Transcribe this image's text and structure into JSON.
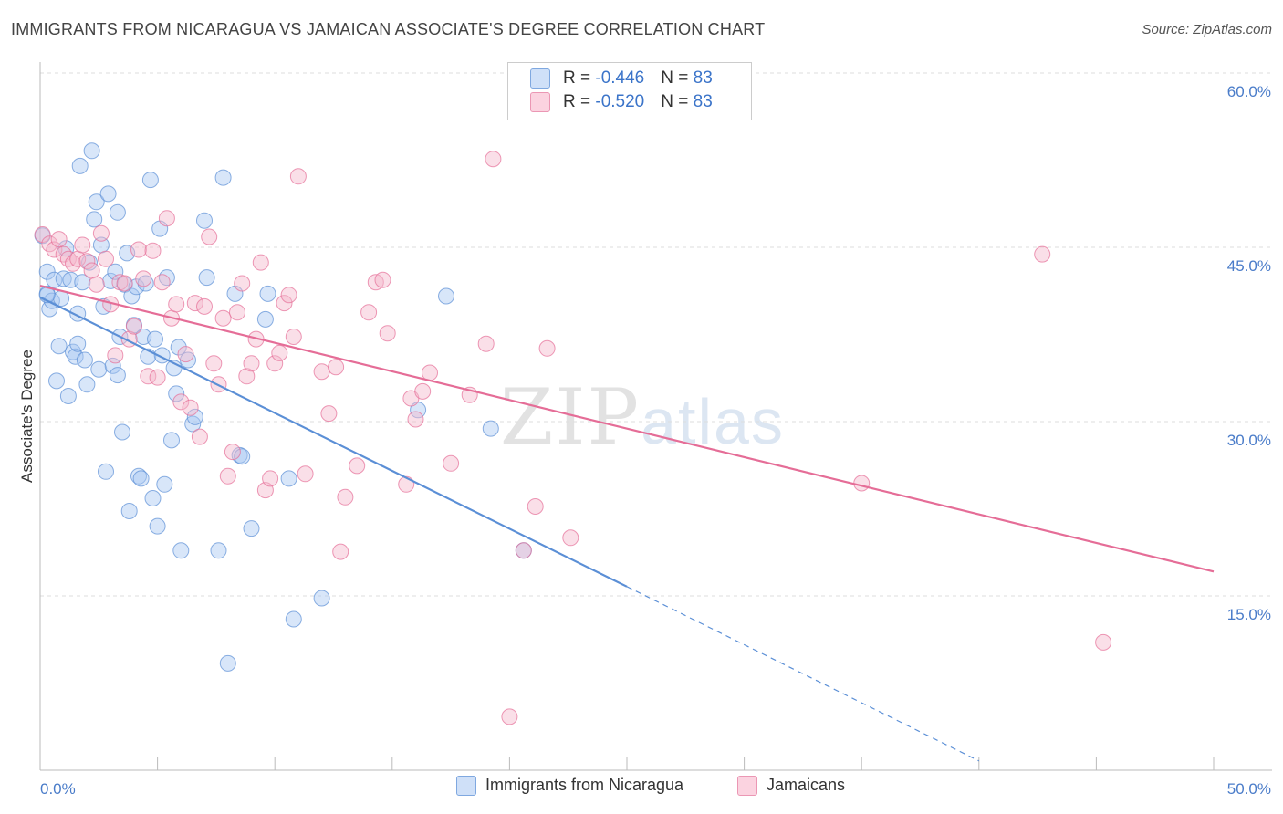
{
  "title": "IMMIGRANTS FROM NICARAGUA VS JAMAICAN ASSOCIATE'S DEGREE CORRELATION CHART",
  "source": "Source: ZipAtlas.com",
  "watermark": {
    "zip": "ZIP",
    "atlas": "atlas"
  },
  "legend": {
    "rows": [
      {
        "r_label": "R = ",
        "r_value": "-0.446",
        "n_label": "N = ",
        "n_value": "83",
        "color": "#a9c8f2"
      },
      {
        "r_label": "R = ",
        "r_value": "-0.520",
        "n_label": "N = ",
        "n_value": "83",
        "color": "#f5b8cc"
      }
    ]
  },
  "bottom_legend": {
    "items": [
      {
        "label": "Immigrants from Nicaragua",
        "color": "#a9c8f2"
      },
      {
        "label": "Jamaicans",
        "color": "#f5b8cc"
      }
    ]
  },
  "chart_data": {
    "type": "scatter",
    "title": "IMMIGRANTS FROM NICARAGUA VS JAMAICAN ASSOCIATE'S DEGREE CORRELATION CHART",
    "xlabel": "",
    "ylabel": "Associate's Degree",
    "xlim": [
      0,
      50
    ],
    "ylim": [
      0,
      60
    ],
    "x_tick_labels": [
      "0.0%",
      "50.0%"
    ],
    "y_ticks": [
      15,
      30,
      45,
      60
    ],
    "y_tick_labels": [
      "15.0%",
      "30.0%",
      "45.0%",
      "60.0%"
    ],
    "grid": true,
    "legend_position": "top-center",
    "series": [
      {
        "name": "Immigrants from Nicaragua",
        "color": "#5b8fd6",
        "fill": "#a9c8f2",
        "trend": {
          "x": [
            0,
            25
          ],
          "y": [
            40.7,
            15.8
          ],
          "dashed_to": [
            40,
            0.8
          ]
        },
        "points": [
          [
            0.1,
            46.0
          ],
          [
            0.3,
            42.9
          ],
          [
            0.3,
            41.0
          ],
          [
            0.4,
            39.7
          ],
          [
            0.5,
            40.4
          ],
          [
            0.6,
            42.2
          ],
          [
            0.7,
            33.5
          ],
          [
            0.8,
            36.5
          ],
          [
            0.9,
            40.6
          ],
          [
            1.0,
            42.3
          ],
          [
            1.1,
            44.9
          ],
          [
            1.2,
            32.2
          ],
          [
            1.3,
            42.2
          ],
          [
            1.4,
            36.0
          ],
          [
            1.5,
            35.6
          ],
          [
            1.6,
            36.7
          ],
          [
            1.6,
            39.3
          ],
          [
            1.7,
            52.0
          ],
          [
            1.8,
            42.0
          ],
          [
            1.9,
            35.3
          ],
          [
            2.0,
            33.2
          ],
          [
            2.1,
            43.7
          ],
          [
            2.2,
            53.3
          ],
          [
            2.3,
            47.4
          ],
          [
            2.4,
            48.9
          ],
          [
            2.5,
            34.5
          ],
          [
            2.6,
            45.2
          ],
          [
            2.7,
            39.9
          ],
          [
            2.8,
            25.7
          ],
          [
            2.9,
            49.6
          ],
          [
            3.0,
            42.1
          ],
          [
            3.1,
            34.8
          ],
          [
            3.2,
            42.9
          ],
          [
            3.3,
            34.0
          ],
          [
            3.4,
            37.3
          ],
          [
            3.5,
            29.1
          ],
          [
            3.6,
            41.8
          ],
          [
            3.7,
            44.5
          ],
          [
            3.8,
            22.3
          ],
          [
            3.9,
            40.8
          ],
          [
            4.0,
            38.3
          ],
          [
            4.1,
            41.6
          ],
          [
            4.2,
            25.3
          ],
          [
            4.3,
            25.1
          ],
          [
            4.4,
            37.3
          ],
          [
            4.5,
            41.9
          ],
          [
            4.6,
            35.6
          ],
          [
            4.7,
            50.8
          ],
          [
            4.8,
            23.4
          ],
          [
            4.9,
            37.1
          ],
          [
            5.0,
            21.0
          ],
          [
            5.1,
            46.6
          ],
          [
            5.2,
            35.7
          ],
          [
            5.3,
            24.6
          ],
          [
            5.4,
            42.4
          ],
          [
            5.6,
            28.4
          ],
          [
            5.7,
            34.6
          ],
          [
            5.8,
            32.4
          ],
          [
            5.9,
            36.4
          ],
          [
            6.0,
            18.9
          ],
          [
            6.3,
            35.3
          ],
          [
            6.5,
            29.8
          ],
          [
            6.6,
            30.4
          ],
          [
            7.0,
            47.3
          ],
          [
            7.1,
            42.4
          ],
          [
            7.6,
            18.9
          ],
          [
            8.0,
            9.2
          ],
          [
            8.3,
            41.0
          ],
          [
            8.5,
            27.1
          ],
          [
            8.6,
            27.0
          ],
          [
            9.0,
            20.8
          ],
          [
            9.6,
            38.8
          ],
          [
            9.7,
            41.0
          ],
          [
            10.6,
            25.1
          ],
          [
            10.8,
            13.0
          ],
          [
            12.0,
            14.8
          ],
          [
            16.1,
            31.0
          ],
          [
            17.3,
            40.8
          ],
          [
            19.2,
            29.4
          ],
          [
            20.6,
            18.9
          ],
          [
            0.3,
            40.9
          ],
          [
            7.8,
            51.0
          ],
          [
            3.3,
            48.0
          ]
        ]
      },
      {
        "name": "Jamaicans",
        "color": "#e56d97",
        "fill": "#f5b8cc",
        "trend": {
          "x": [
            0,
            50
          ],
          "y": [
            41.7,
            17.1
          ]
        },
        "points": [
          [
            0.1,
            46.1
          ],
          [
            0.4,
            45.3
          ],
          [
            0.6,
            44.8
          ],
          [
            0.8,
            45.7
          ],
          [
            1.0,
            44.4
          ],
          [
            1.2,
            44.0
          ],
          [
            1.4,
            43.6
          ],
          [
            1.6,
            44.0
          ],
          [
            1.8,
            45.2
          ],
          [
            2.0,
            43.8
          ],
          [
            2.2,
            43.0
          ],
          [
            2.4,
            41.8
          ],
          [
            2.6,
            46.2
          ],
          [
            2.8,
            44.0
          ],
          [
            3.0,
            40.1
          ],
          [
            3.2,
            35.7
          ],
          [
            3.4,
            42.0
          ],
          [
            3.6,
            41.9
          ],
          [
            3.8,
            37.1
          ],
          [
            4.0,
            38.2
          ],
          [
            4.2,
            44.8
          ],
          [
            4.4,
            42.3
          ],
          [
            4.6,
            33.9
          ],
          [
            4.8,
            44.7
          ],
          [
            5.0,
            33.8
          ],
          [
            5.2,
            42.0
          ],
          [
            5.4,
            47.5
          ],
          [
            5.6,
            38.9
          ],
          [
            5.8,
            40.1
          ],
          [
            6.0,
            31.7
          ],
          [
            6.2,
            35.8
          ],
          [
            6.4,
            31.2
          ],
          [
            6.6,
            40.2
          ],
          [
            6.8,
            28.7
          ],
          [
            7.0,
            39.9
          ],
          [
            7.2,
            45.9
          ],
          [
            7.4,
            35.0
          ],
          [
            7.6,
            33.2
          ],
          [
            7.8,
            38.9
          ],
          [
            8.0,
            25.3
          ],
          [
            8.2,
            27.4
          ],
          [
            8.4,
            39.4
          ],
          [
            8.6,
            41.9
          ],
          [
            8.8,
            33.9
          ],
          [
            9.0,
            35.0
          ],
          [
            9.2,
            37.1
          ],
          [
            9.4,
            43.7
          ],
          [
            9.6,
            24.1
          ],
          [
            9.8,
            25.1
          ],
          [
            10.0,
            35.0
          ],
          [
            10.2,
            35.9
          ],
          [
            10.4,
            40.2
          ],
          [
            10.6,
            40.9
          ],
          [
            10.8,
            37.3
          ],
          [
            11.0,
            51.1
          ],
          [
            11.3,
            25.5
          ],
          [
            12.0,
            34.3
          ],
          [
            12.3,
            30.7
          ],
          [
            12.6,
            34.7
          ],
          [
            12.8,
            18.8
          ],
          [
            13.0,
            23.5
          ],
          [
            13.5,
            26.2
          ],
          [
            14.0,
            39.4
          ],
          [
            14.3,
            42.0
          ],
          [
            14.6,
            42.2
          ],
          [
            14.8,
            37.6
          ],
          [
            15.6,
            24.6
          ],
          [
            15.8,
            32.0
          ],
          [
            16.0,
            30.2
          ],
          [
            16.3,
            32.6
          ],
          [
            16.6,
            34.2
          ],
          [
            17.5,
            26.4
          ],
          [
            18.3,
            32.3
          ],
          [
            19.0,
            36.7
          ],
          [
            19.3,
            52.6
          ],
          [
            20.0,
            4.6
          ],
          [
            20.6,
            18.9
          ],
          [
            21.1,
            22.7
          ],
          [
            21.6,
            36.3
          ],
          [
            22.6,
            20.0
          ],
          [
            35.0,
            24.7
          ],
          [
            42.7,
            44.4
          ],
          [
            45.3,
            11.0
          ]
        ]
      }
    ]
  }
}
